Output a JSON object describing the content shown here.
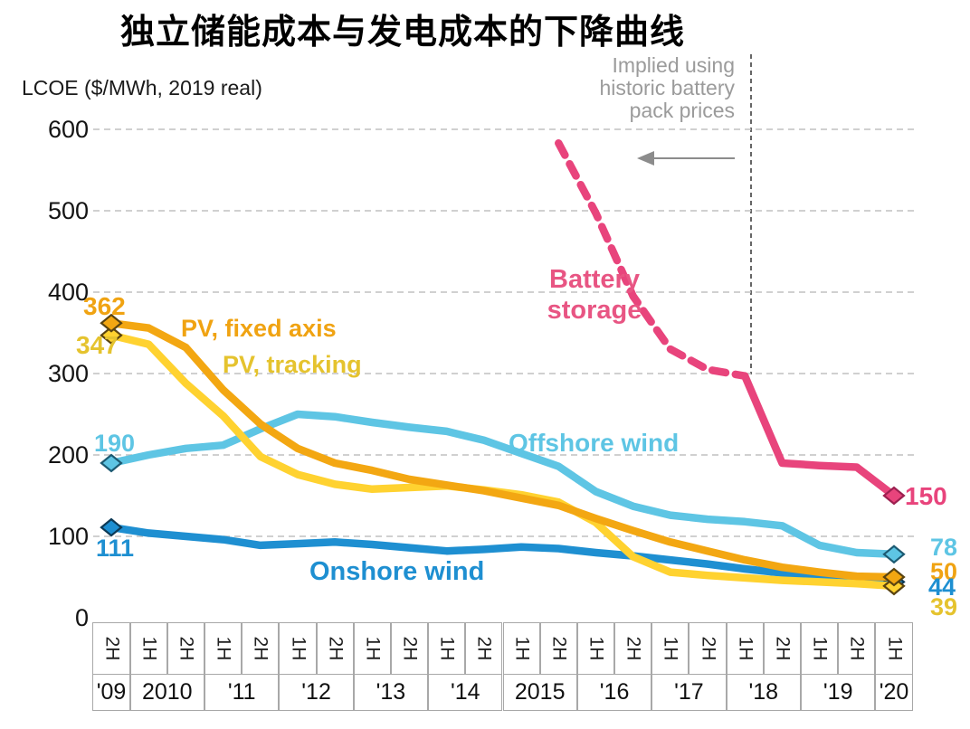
{
  "chart_data": {
    "type": "line",
    "title": "独立储能成本与发电成本的下降曲线",
    "ylabel": "LCOE ($/MWh, 2019 real)",
    "ylim": [
      0,
      600
    ],
    "yticks": [
      600,
      500,
      400,
      300,
      200,
      100,
      0
    ],
    "grid": "dashed-horizontal",
    "legend_position": "inline-labels",
    "annotation": {
      "lines": [
        "Implied using",
        "historic battery",
        "pack prices"
      ],
      "color": "#9b9b9b"
    },
    "x_axis": {
      "periods": [
        "2H",
        "1H",
        "2H",
        "1H",
        "2H",
        "1H",
        "2H",
        "1H",
        "2H",
        "1H",
        "2H",
        "1H",
        "2H",
        "1H",
        "2H",
        "1H",
        "2H",
        "1H",
        "2H",
        "1H",
        "2H",
        "1H"
      ],
      "year_groups": [
        {
          "label": "'09",
          "span": 1
        },
        {
          "label": "2010",
          "span": 2
        },
        {
          "label": "'11",
          "span": 2
        },
        {
          "label": "'12",
          "span": 2
        },
        {
          "label": "'13",
          "span": 2
        },
        {
          "label": "'14",
          "span": 2
        },
        {
          "label": "2015",
          "span": 2
        },
        {
          "label": "'16",
          "span": 2
        },
        {
          "label": "'17",
          "span": 2
        },
        {
          "label": "'18",
          "span": 2
        },
        {
          "label": "'19",
          "span": 2
        },
        {
          "label": "'20",
          "span": 1
        }
      ]
    },
    "series": [
      {
        "id": "pv-fixed",
        "name": "PV, fixed axis",
        "color": "#F3A712",
        "marker_outline": "#5a4410",
        "start_label": "362",
        "end_label": "50",
        "start_index": 0,
        "style": "solid",
        "markers": [
          "start",
          "end"
        ],
        "values": [
          362,
          356,
          332,
          280,
          238,
          208,
          190,
          181,
          170,
          163,
          156,
          147,
          138,
          122,
          107,
          93,
          82,
          71,
          62,
          56,
          51,
          50
        ]
      },
      {
        "id": "pv-tracking",
        "name": "PV, tracking",
        "color": "#FFD230",
        "marker_outline": "#5a4410",
        "start_label": "347",
        "end_label": "39",
        "start_index": 0,
        "style": "solid",
        "markers": [
          "start",
          "end"
        ],
        "values": [
          347,
          336,
          288,
          248,
          198,
          176,
          164,
          158,
          160,
          162,
          157,
          151,
          142,
          117,
          75,
          56,
          52,
          49,
          46,
          44,
          42,
          39
        ]
      },
      {
        "id": "offshore-wind",
        "name": "Offshore wind",
        "color": "#5EC5E4",
        "marker_outline": "#1c5a72",
        "start_label": "190",
        "end_label": "78",
        "start_index": 0,
        "style": "solid",
        "markers": [
          "start",
          "end"
        ],
        "values": [
          190,
          200,
          208,
          212,
          232,
          250,
          247,
          240,
          234,
          229,
          218,
          202,
          186,
          155,
          137,
          126,
          121,
          118,
          113,
          89,
          80,
          78
        ]
      },
      {
        "id": "onshore-wind",
        "name": "Onshore wind",
        "color": "#1E8FD1",
        "marker_outline": "#0d3a56",
        "start_label": "111",
        "end_label": "44",
        "start_index": 0,
        "style": "solid",
        "markers": [
          "start",
          "end"
        ],
        "values": [
          111,
          104,
          100,
          96,
          89,
          91,
          93,
          90,
          86,
          82,
          84,
          87,
          85,
          80,
          76,
          71,
          66,
          60,
          55,
          50,
          46,
          44
        ]
      },
      {
        "id": "battery-storage",
        "name": "Battery storage",
        "label_lines": [
          "Battery",
          "storage"
        ],
        "color": "#E8447C",
        "marker_outline": "#9c2050",
        "end_label": "150",
        "start_index": 12,
        "style": "dashed-then-solid",
        "dash_segment_end": 5,
        "markers": [
          "end"
        ],
        "values": [
          583,
          497,
          395,
          330,
          305,
          297,
          190,
          187,
          185,
          150
        ]
      }
    ]
  }
}
